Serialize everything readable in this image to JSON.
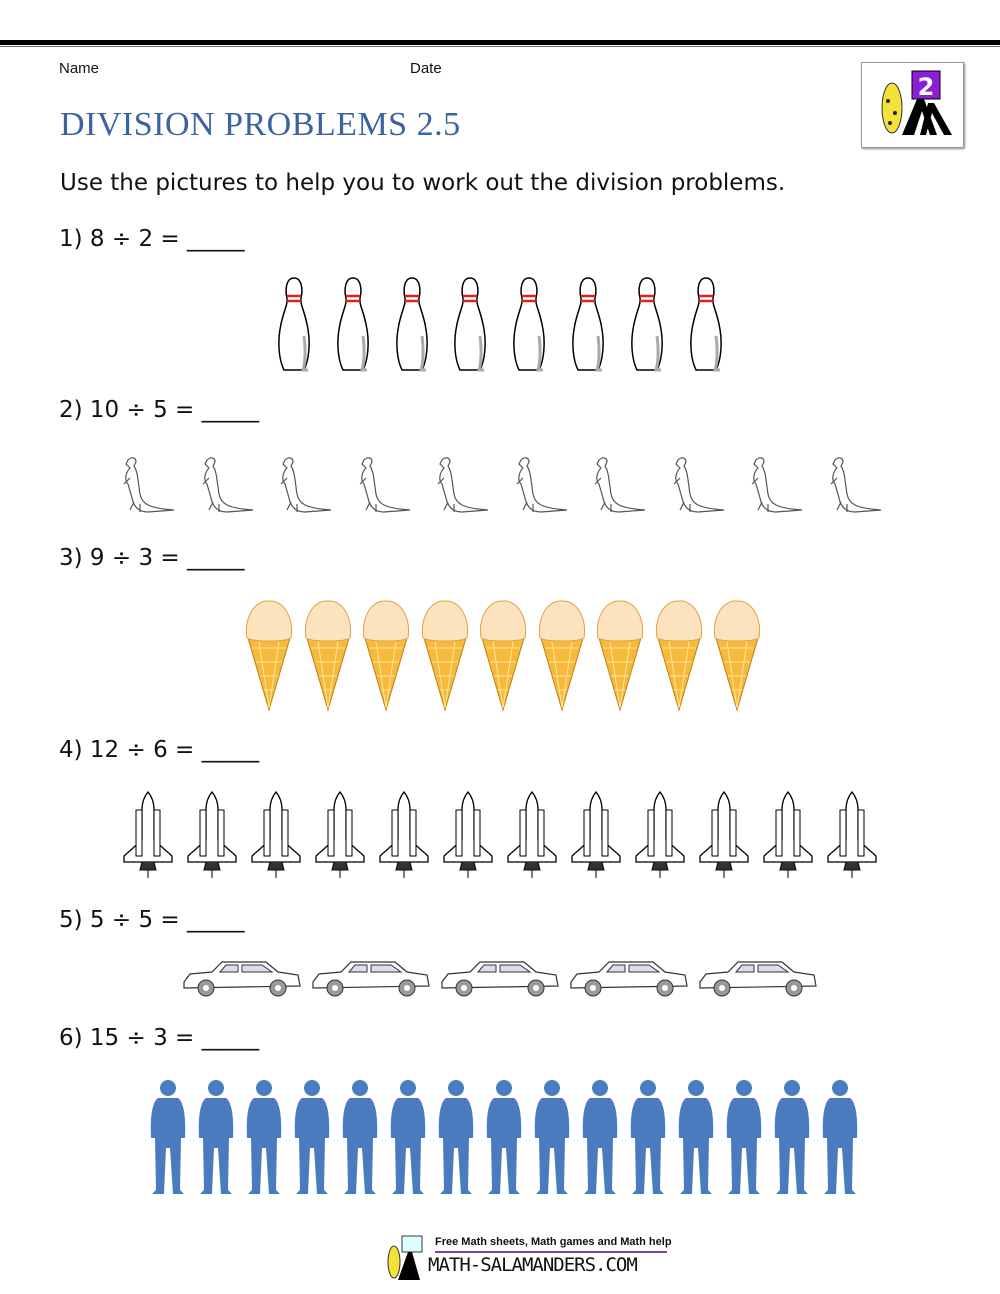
{
  "header": {
    "name_label": "Name",
    "date_label": "Date",
    "logo_number": "2"
  },
  "title": "DIVISION PROBLEMS 2.5",
  "instructions": "Use the pictures to help you to work out the division problems.",
  "problems": [
    {
      "label": "1) 8 ÷ 2 = _____",
      "picture": "bowling-pin",
      "count": 8
    },
    {
      "label": "2) 10 ÷ 5 = _____",
      "picture": "lizard",
      "count": 10
    },
    {
      "label": "3) 9 ÷ 3 = _____",
      "picture": "ice-cream-cone",
      "count": 9
    },
    {
      "label": "4) 12 ÷ 6 = _____",
      "picture": "space-shuttle",
      "count": 12
    },
    {
      "label": "5) 5 ÷ 5 = _____",
      "picture": "car",
      "count": 5
    },
    {
      "label": "6) 15 ÷ 3 = _____",
      "picture": "person-silhouette",
      "count": 15
    }
  ],
  "footer": {
    "tagline": "Free Math sheets, Math games and Math help",
    "brand": "MATH-SALAMANDERS.COM"
  },
  "colors": {
    "title": "#3b63a0",
    "person": "#4a7bbf",
    "cone": "#f6b93b",
    "scoop": "#fbe3c0",
    "footer_line": "#7a3fb0"
  }
}
